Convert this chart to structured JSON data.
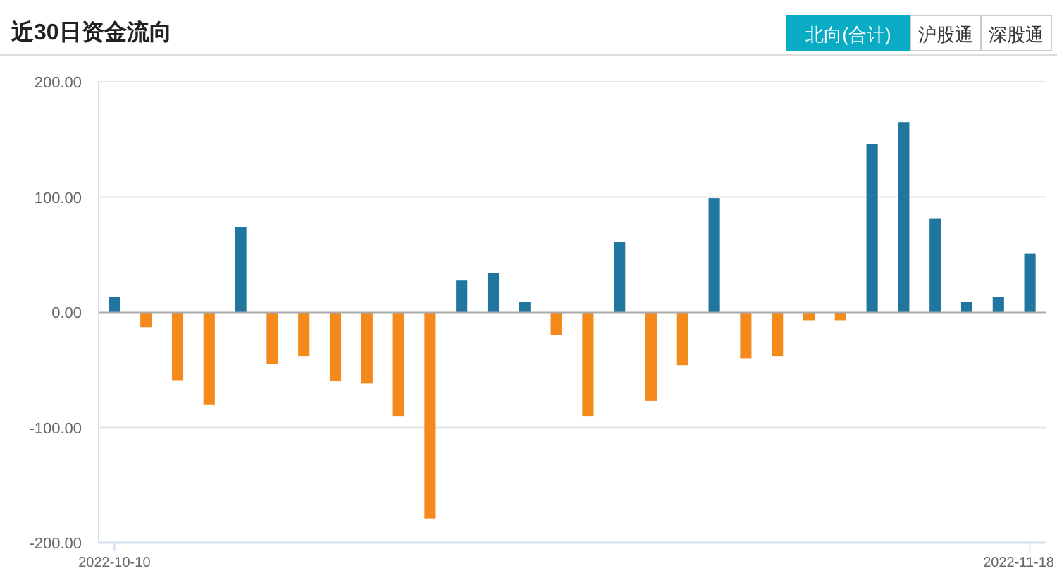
{
  "chart_data": {
    "type": "bar",
    "title": "近30日资金流向",
    "annotations": [
      "北向(合计)",
      "沪股通",
      "深股通"
    ],
    "categories": [
      "2022-10-10",
      null,
      null,
      null,
      null,
      null,
      null,
      null,
      null,
      null,
      null,
      null,
      null,
      null,
      null,
      null,
      null,
      null,
      null,
      null,
      null,
      null,
      null,
      null,
      null,
      null,
      null,
      null,
      null,
      "2022-11-18"
    ],
    "values": [
      13,
      -13,
      -59,
      -80,
      74,
      -45,
      -38,
      -60,
      -62,
      -90,
      -179,
      28,
      34,
      9,
      -20,
      -90,
      61,
      -77,
      -46,
      99,
      -40,
      -38,
      -7,
      -7,
      146,
      165,
      81,
      9,
      13,
      51
    ],
    "colors": [
      "#21769f",
      "#f58a1c",
      "#f58a1c",
      "#f58a1c",
      "#21769f",
      "#f58a1c",
      "#f58a1c",
      "#f58a1c",
      "#f58a1c",
      "#f58a1c",
      "#f58a1c",
      "#21769f",
      "#21769f",
      "#21769f",
      "#f58a1c",
      "#f58a1c",
      "#21769f",
      "#f58a1c",
      "#f58a1c",
      "#21769f",
      "#f58a1c",
      "#f58a1c",
      "#f58a1c",
      "#f58a1c",
      "#21769f",
      "#21769f",
      "#21769f",
      "#21769f",
      "#21769f",
      "#21769f"
    ],
    "ylim": [
      -200,
      200
    ],
    "yticks": [
      {
        "value": -200,
        "label": "-200.00"
      },
      {
        "value": -100,
        "label": "-100.00"
      },
      {
        "value": 0,
        "label": "0.00"
      },
      {
        "value": 100,
        "label": "100.00"
      },
      {
        "value": 200,
        "label": "200.00"
      }
    ],
    "grid": "y"
  }
}
